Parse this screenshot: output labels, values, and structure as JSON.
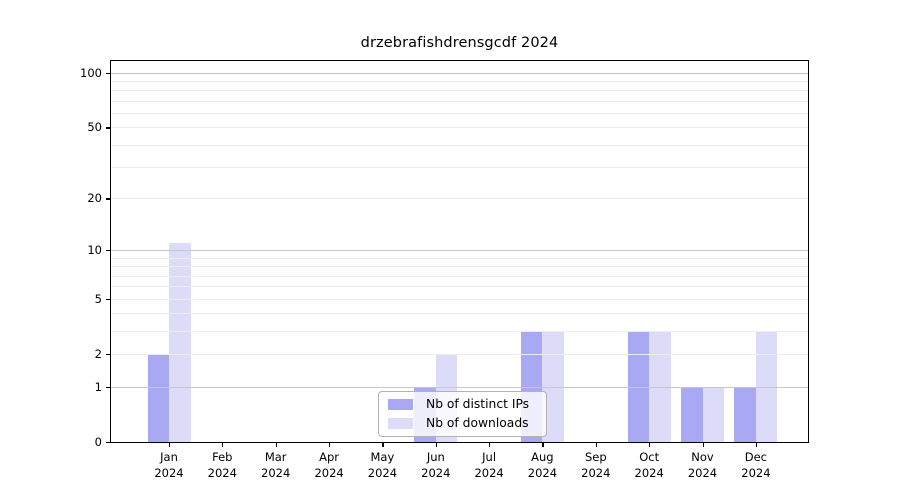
{
  "figure": {
    "title": "drzebrafishdrensgcdf 2024"
  },
  "legend": {
    "items": [
      {
        "label": "Nb of distinct IPs",
        "color": "#a9a9f3"
      },
      {
        "label": "Nb of downloads",
        "color": "#dcdcf8"
      }
    ],
    "position": "lower center"
  },
  "colors": {
    "bar_distinct_ips": "#a9a9f3",
    "bar_downloads": "#dcdcf8",
    "grid_major": "#c7c7c7",
    "grid_minor": "#ededed",
    "spine": "#000000",
    "background": "#ffffff"
  },
  "chart_data": {
    "type": "bar",
    "title": "drzebrafishdrensgcdf 2024",
    "categories": [
      "Jan 2024",
      "Feb 2024",
      "Mar 2024",
      "Apr 2024",
      "May 2024",
      "Jun 2024",
      "Jul 2024",
      "Aug 2024",
      "Sep 2024",
      "Oct 2024",
      "Nov 2024",
      "Dec 2024"
    ],
    "series": [
      {
        "name": "Nb of distinct IPs",
        "color": "#a9a9f3",
        "values": [
          2,
          0,
          0,
          0,
          0,
          1,
          0,
          3,
          0,
          3,
          1,
          1
        ]
      },
      {
        "name": "Nb of downloads",
        "color": "#dcdcf8",
        "values": [
          11,
          0,
          0,
          0,
          0,
          2,
          0,
          3,
          0,
          3,
          1,
          3
        ]
      }
    ],
    "xlabel": "",
    "ylabel": "",
    "y_scale": "log(value+1)",
    "y_ticks": [
      0,
      1,
      2,
      5,
      10,
      20,
      50,
      100
    ],
    "y_major_gridlines": [
      1,
      10,
      100
    ],
    "y_minor_gridlines": [
      2,
      3,
      4,
      5,
      6,
      7,
      8,
      9,
      20,
      30,
      40,
      50,
      60,
      70,
      80,
      90
    ],
    "ylim": [
      0,
      116
    ],
    "grid": true,
    "legend_position": "lower center"
  }
}
